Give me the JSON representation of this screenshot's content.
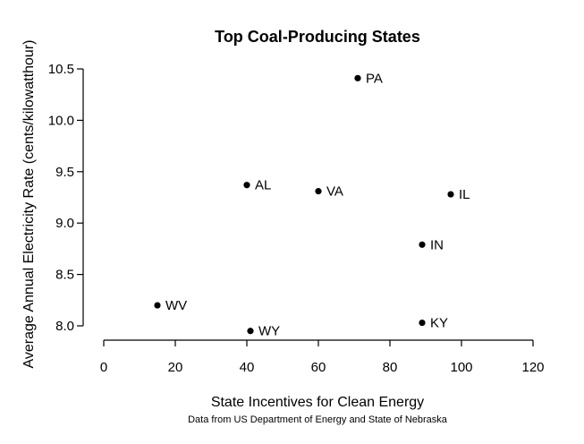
{
  "chart_data": {
    "type": "scatter",
    "title": "Top Coal-Producing States",
    "xlabel": "State Incentives for Clean Energy",
    "ylabel": "Average Annual Electricity Rate (cents/kilowatthour)",
    "caption": "Data from US Department of Energy and State of Nebraska",
    "xlim": [
      0,
      120
    ],
    "ylim": [
      8.0,
      10.5
    ],
    "xticks": [
      "0",
      "20",
      "40",
      "60",
      "80",
      "100",
      "120"
    ],
    "yticks": [
      "8.0",
      "8.5",
      "9.0",
      "9.5",
      "10.0",
      "10.5"
    ],
    "grid": false,
    "points": [
      {
        "label": "PA",
        "x": 71,
        "y": 10.41
      },
      {
        "label": "AL",
        "x": 40,
        "y": 9.37
      },
      {
        "label": "VA",
        "x": 60,
        "y": 9.31
      },
      {
        "label": "IL",
        "x": 97,
        "y": 9.28
      },
      {
        "label": "IN",
        "x": 89,
        "y": 8.79
      },
      {
        "label": "WV",
        "x": 15,
        "y": 8.2
      },
      {
        "label": "KY",
        "x": 89,
        "y": 8.03
      },
      {
        "label": "WY",
        "x": 41,
        "y": 7.95
      }
    ]
  }
}
